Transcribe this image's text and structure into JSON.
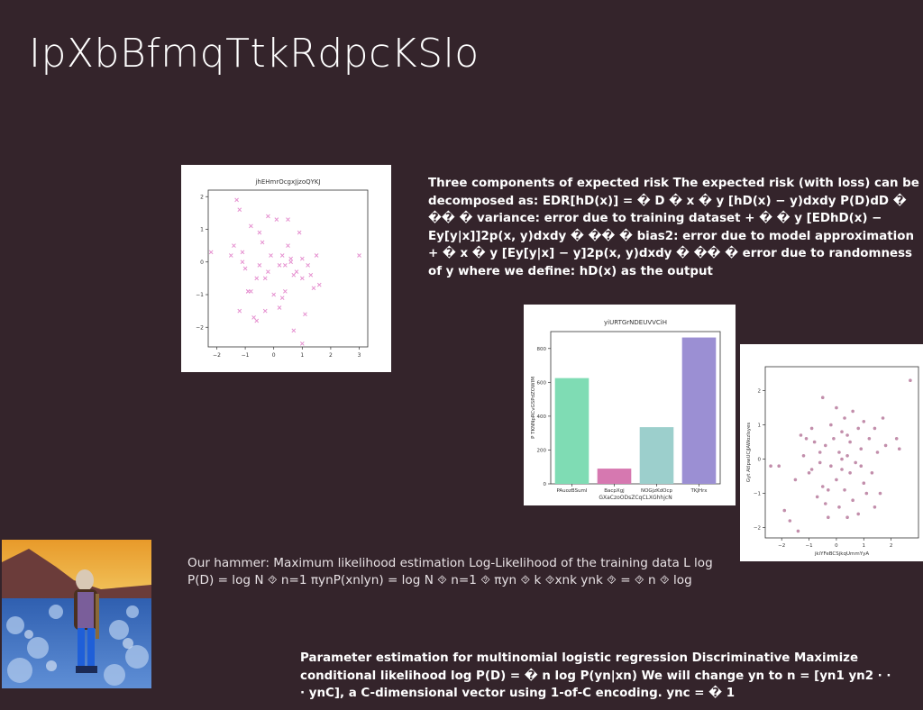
{
  "slide": {
    "title": "IpXbBfmqTtkRdpcKSlo",
    "block1": "Three components of expected risk The expected risk (with loss) can be decomposed as: EDR[hD(x)] = � D � x � y [hD(x) − y)dxdy P(D)dD � �� � variance: error due to training dataset + � � y [EDhD(x) − Ey[y|x]]2p(x, y)dxdy � �� � bias2: error due to model approximation + � x � y [Ey[y|x] − y]2p(x, y)dxdy � �� � error due to randomness of y where we define: hD(x) as the output",
    "block2": "Our hammer: Maximum likelihood estimation Log-Likelihood of the training data L log P(D) = log N ⯑ n=1 πynP(xnlyn) = log N ⯑ n=1 ⯑ πyn ⯑ k ⯑xnk ynk ⯑ = ⯑ n ⯑ log",
    "block3": "Parameter estimation for multinomial logistic regression Discriminative Maximize conditional likelihood log P(D) = � n log P(yn|xn) We will change yn to n = [yn1 yn2 · · · ynC]⵻, a C-dimensional vector using 1-of-C encoding. ync = � 1"
  },
  "colors": {
    "background": "#34242b",
    "scatter1": "#e58fcf",
    "scatter2": "#b77a9c",
    "bars": [
      "#7fdcb4",
      "#d678b0",
      "#9ccfcc",
      "#9b8fd3"
    ]
  },
  "chart_data": [
    {
      "type": "scatter",
      "title": "jhEHmrOcgxJjzoQYKJ",
      "xlabel": "",
      "ylabel": "",
      "xlim": [
        -2.3,
        3.3
      ],
      "ylim": [
        -2.6,
        2.2
      ],
      "xticks": [
        "-2",
        "-1",
        "0",
        "1",
        "2",
        "3"
      ],
      "yticks": [
        "2",
        "1",
        "0",
        "-1",
        "-2"
      ],
      "marker": "x",
      "points": [
        [
          -2.2,
          0.3
        ],
        [
          -1.5,
          0.2
        ],
        [
          -1.4,
          0.5
        ],
        [
          -1.3,
          1.9
        ],
        [
          -1.2,
          1.6
        ],
        [
          -1.1,
          0.3
        ],
        [
          -1.1,
          0.0
        ],
        [
          -1.0,
          -0.2
        ],
        [
          -0.9,
          -0.9
        ],
        [
          -0.8,
          -0.9
        ],
        [
          -0.8,
          1.1
        ],
        [
          -0.7,
          -1.7
        ],
        [
          -0.6,
          -1.8
        ],
        [
          -0.6,
          -0.5
        ],
        [
          -0.5,
          0.9
        ],
        [
          -0.4,
          0.6
        ],
        [
          -0.3,
          -0.5
        ],
        [
          -0.2,
          1.4
        ],
        [
          -0.1,
          0.2
        ],
        [
          0.0,
          -1.0
        ],
        [
          0.1,
          1.3
        ],
        [
          0.2,
          -0.1
        ],
        [
          0.3,
          0.2
        ],
        [
          0.3,
          -1.1
        ],
        [
          0.4,
          -0.9
        ],
        [
          0.5,
          1.3
        ],
        [
          0.5,
          0.5
        ],
        [
          0.6,
          0.0
        ],
        [
          0.7,
          -0.4
        ],
        [
          0.7,
          -2.1
        ],
        [
          0.8,
          -0.3
        ],
        [
          0.9,
          0.9
        ],
        [
          1.0,
          -0.5
        ],
        [
          1.0,
          -2.5
        ],
        [
          1.1,
          -1.6
        ],
        [
          1.2,
          -0.1
        ],
        [
          1.3,
          -0.4
        ],
        [
          1.4,
          -0.8
        ],
        [
          1.5,
          0.2
        ],
        [
          1.6,
          -0.7
        ],
        [
          -1.2,
          -1.5
        ],
        [
          -0.3,
          -1.5
        ],
        [
          0.2,
          -1.4
        ],
        [
          0.6,
          0.1
        ],
        [
          3.0,
          0.2
        ],
        [
          -0.9,
          -0.9
        ],
        [
          -0.2,
          -0.3
        ],
        [
          0.4,
          -0.1
        ],
        [
          1.0,
          0.1
        ],
        [
          -0.5,
          -0.1
        ]
      ]
    },
    {
      "type": "bar",
      "title": "yiURTGrNDEUVVCiH",
      "xlabel": "GXaCzoODsZCqCLXGhhjcN",
      "ylabel": "P TKNNpRCvGSPdZOWIM",
      "categories": [
        "PAuozBSumI",
        "BacpXgj",
        "NOGjzKdOcp",
        "TKJHrx"
      ],
      "values": [
        625,
        90,
        335,
        865
      ],
      "ylim": [
        0,
        900
      ],
      "yticks": [
        "0",
        "200",
        "400",
        "600",
        "800"
      ]
    },
    {
      "type": "scatter",
      "title": "",
      "xlabel": "jkiYFeBCSjkqUmmYyA",
      "ylabel": "Gyt AtlpwUCjJAWozIsyes",
      "xlim": [
        -2.6,
        3.0
      ],
      "ylim": [
        -2.3,
        2.7
      ],
      "xticks": [
        "-2",
        "-1",
        "0",
        "1",
        "2"
      ],
      "yticks": [
        "2",
        "1",
        "0",
        "-1",
        "-2"
      ],
      "marker": "o",
      "points": [
        [
          -2.4,
          -0.2
        ],
        [
          -2.1,
          -0.2
        ],
        [
          -1.9,
          -1.5
        ],
        [
          -1.7,
          -1.8
        ],
        [
          -1.4,
          -2.1
        ],
        [
          -1.3,
          0.7
        ],
        [
          -1.2,
          0.1
        ],
        [
          -1.1,
          0.6
        ],
        [
          -1.0,
          -0.4
        ],
        [
          -0.9,
          0.9
        ],
        [
          -0.9,
          -0.3
        ],
        [
          -0.8,
          0.5
        ],
        [
          -0.7,
          -1.1
        ],
        [
          -0.6,
          0.2
        ],
        [
          -0.5,
          -0.8
        ],
        [
          -0.5,
          1.8
        ],
        [
          -0.4,
          0.4
        ],
        [
          -0.4,
          -1.3
        ],
        [
          -0.3,
          -0.9
        ],
        [
          -0.2,
          1.0
        ],
        [
          -0.2,
          -0.2
        ],
        [
          -0.1,
          0.6
        ],
        [
          0.0,
          -0.6
        ],
        [
          0.0,
          1.5
        ],
        [
          0.1,
          0.2
        ],
        [
          0.1,
          -1.4
        ],
        [
          0.2,
          -0.3
        ],
        [
          0.2,
          0.8
        ],
        [
          0.3,
          -0.9
        ],
        [
          0.3,
          1.2
        ],
        [
          0.4,
          0.1
        ],
        [
          0.4,
          -1.7
        ],
        [
          0.5,
          -0.4
        ],
        [
          0.5,
          0.5
        ],
        [
          0.6,
          -1.2
        ],
        [
          0.6,
          1.4
        ],
        [
          0.7,
          -0.1
        ],
        [
          0.8,
          0.9
        ],
        [
          0.8,
          -1.6
        ],
        [
          0.9,
          0.3
        ],
        [
          1.0,
          -0.7
        ],
        [
          1.1,
          -1.0
        ],
        [
          1.2,
          0.6
        ],
        [
          1.3,
          -0.4
        ],
        [
          1.4,
          -1.4
        ],
        [
          1.5,
          0.2
        ],
        [
          1.6,
          -1.0
        ],
        [
          1.7,
          1.2
        ],
        [
          1.8,
          0.4
        ],
        [
          2.2,
          0.6
        ],
        [
          2.3,
          0.3
        ],
        [
          2.7,
          2.3
        ],
        [
          -0.6,
          -0.1
        ],
        [
          0.2,
          0.0
        ],
        [
          -1.5,
          -0.6
        ],
        [
          1.0,
          1.1
        ],
        [
          0.4,
          0.7
        ],
        [
          -0.3,
          -1.7
        ],
        [
          0.9,
          -0.2
        ],
        [
          1.4,
          0.9
        ]
      ]
    }
  ]
}
